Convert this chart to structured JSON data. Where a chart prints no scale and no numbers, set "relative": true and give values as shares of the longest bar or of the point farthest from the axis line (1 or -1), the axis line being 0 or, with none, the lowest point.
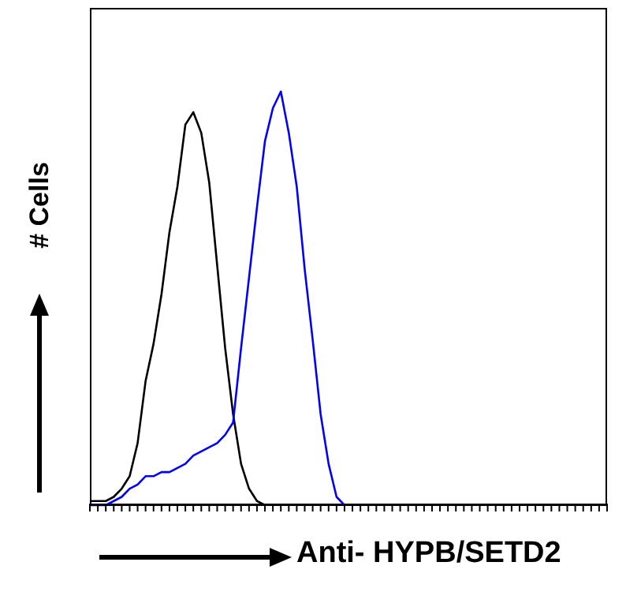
{
  "chart_data": {
    "type": "line",
    "relative": true,
    "xlabel": "Anti- HYPB/SETD2",
    "ylabel": "# Cells",
    "categories": [
      null,
      null,
      null,
      null,
      null,
      null,
      null,
      null,
      null,
      null,
      null,
      null,
      null,
      null,
      null,
      null,
      null,
      null,
      null,
      null,
      null,
      null,
      null,
      null,
      null,
      null,
      null,
      null,
      null,
      null,
      null,
      null,
      null,
      null,
      null,
      null,
      null,
      null,
      null,
      null,
      null,
      null,
      null,
      null,
      null,
      null,
      null,
      null,
      null,
      null,
      null,
      null,
      null,
      null,
      null,
      null,
      null,
      null,
      null,
      null,
      null,
      null,
      null,
      null,
      null,
      null
    ],
    "series": [
      {
        "color": "#000000",
        "values": [
          0.01,
          0.01,
          0.01,
          0.02,
          0.04,
          0.07,
          0.15,
          0.3,
          0.39,
          0.51,
          0.66,
          0.77,
          0.92,
          0.95,
          0.9,
          0.78,
          0.58,
          0.38,
          0.22,
          0.1,
          0.04,
          0.01,
          0,
          null,
          null,
          null,
          null,
          null,
          null,
          null,
          null,
          null,
          null,
          null,
          null,
          null,
          null,
          null,
          null,
          null,
          null,
          null,
          null,
          null,
          null,
          null,
          null,
          null,
          null,
          null,
          null,
          null,
          null,
          null,
          null,
          null,
          null,
          null,
          null,
          null,
          null,
          null,
          null,
          null,
          null,
          null
        ]
      },
      {
        "color": "#0000ff",
        "values": [
          0,
          0,
          0,
          0.01,
          0.02,
          0.04,
          0.05,
          0.07,
          0.07,
          0.08,
          0.08,
          0.09,
          0.1,
          0.12,
          0.13,
          0.14,
          0.15,
          0.17,
          0.2,
          0.38,
          0.55,
          0.72,
          0.88,
          0.96,
          1,
          0.9,
          0.77,
          0.57,
          0.4,
          0.22,
          0.1,
          0.02,
          0,
          null,
          null,
          null,
          null,
          null,
          null,
          null,
          null,
          null,
          null,
          null,
          null,
          null,
          null,
          null,
          null,
          null,
          null,
          null,
          null,
          null,
          null,
          null,
          null,
          null,
          null,
          null,
          null,
          null,
          null,
          null,
          null,
          null
        ]
      }
    ]
  }
}
